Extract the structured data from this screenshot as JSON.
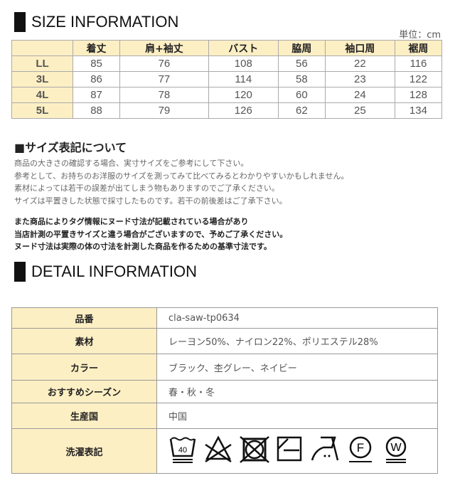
{
  "size_section": {
    "title": "SIZE INFORMATION",
    "unit": "単位：cm",
    "headers": [
      "",
      "着丈",
      "肩+袖丈",
      "バスト",
      "脇周",
      "袖口周",
      "裾周"
    ],
    "rows": [
      [
        "LL",
        "85",
        "76",
        "108",
        "56",
        "22",
        "116"
      ],
      [
        "3L",
        "86",
        "77",
        "114",
        "58",
        "23",
        "122"
      ],
      [
        "4L",
        "87",
        "78",
        "120",
        "60",
        "24",
        "128"
      ],
      [
        "5L",
        "88",
        "79",
        "126",
        "62",
        "25",
        "134"
      ]
    ]
  },
  "size_notes": {
    "title": "■サイズ表記について",
    "lines": [
      "商品の大きさの確認する場合、実寸サイズをご参考にして下さい。",
      "参考として、お持ちのお洋服のサイズを測ってみて比べてみるとわかりやすいかもしれません。",
      "素材によっては若干の誤差が出てしまう物もありますのでご了承ください。",
      "サイズは平置きした状態で採寸したものです。若干の前後差はご了承下さい。"
    ],
    "bold_lines": [
      "また商品によりタグ情報にヌード寸法が記載されている場合があり",
      "当店計測の平置きサイズと違う場合がございますので、予めご了承ください。",
      "ヌード寸法は実際の体の寸法を計測した商品を作るための基準寸法です。"
    ]
  },
  "detail_section": {
    "title": "DETAIL INFORMATION",
    "rows": [
      {
        "label": "品番",
        "value": "cla-saw-tp0634"
      },
      {
        "label": "素材",
        "value": "レーヨン50%、ナイロン22%、ポリエステル28%"
      },
      {
        "label": "カラー",
        "value": "ブラック、杢グレー、ネイビー"
      },
      {
        "label": "おすすめシーズン",
        "value": "春・秋・冬"
      },
      {
        "label": "生産国",
        "value": "中国"
      },
      {
        "label": "洗濯表記",
        "value": ""
      }
    ],
    "care_icons": [
      {
        "name": "wash-40-icon",
        "text": "40"
      },
      {
        "name": "no-bleach-icon"
      },
      {
        "name": "no-tumble-dry-icon"
      },
      {
        "name": "line-dry-shade-icon"
      },
      {
        "name": "iron-medium-icon"
      },
      {
        "name": "dry-clean-f-icon",
        "text": "F"
      },
      {
        "name": "wet-clean-w-icon",
        "text": "W"
      }
    ]
  }
}
